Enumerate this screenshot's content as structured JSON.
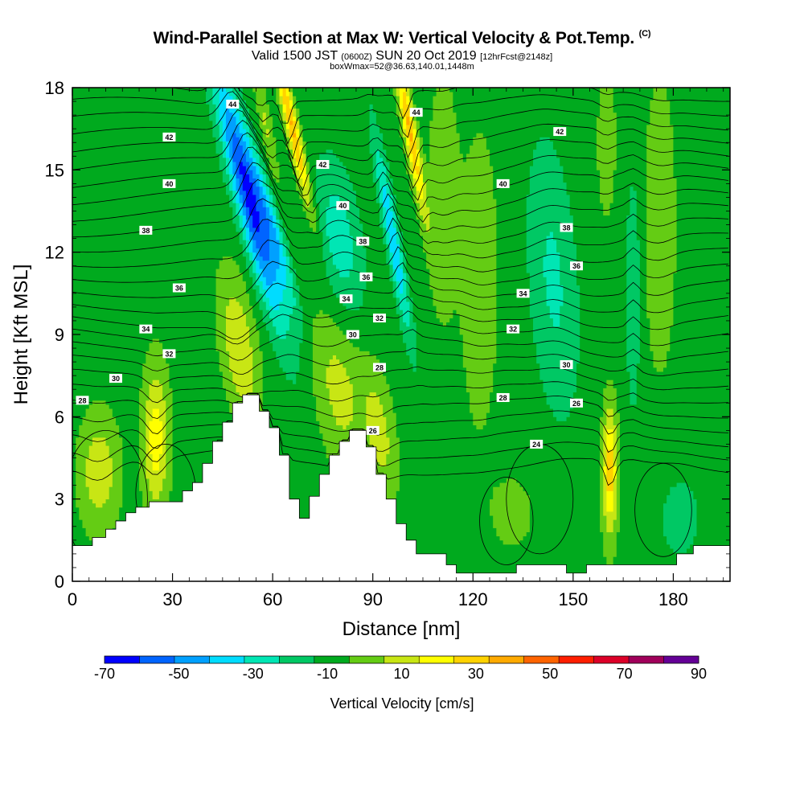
{
  "title": {
    "main": "Wind-Parallel Section at Max W: Vertical Velocity & Pot.Temp.",
    "copyright": "(C)",
    "valid_prefix": "Valid 1500 JST",
    "valid_zulu": "(0600Z)",
    "valid_date": "SUN 20 Oct 2019",
    "forecast": "[12hrFcst@2148z]",
    "box_info": "boxWmax=52@36.63,140.01,1448m"
  },
  "chart_data": {
    "type": "heatmap",
    "xlabel": "Distance [nm]",
    "ylabel": "Height [Kft MSL]",
    "xlim": [
      0,
      197
    ],
    "ylim": [
      0,
      18
    ],
    "x_ticks": [
      "0",
      "30",
      "60",
      "90",
      "120",
      "150",
      "180"
    ],
    "y_ticks": [
      "0",
      "3",
      "6",
      "9",
      "12",
      "15",
      "18"
    ],
    "colorbar": {
      "label": "Vertical Velocity [cm/s]",
      "tick_labels": [
        "-70",
        "-50",
        "-30",
        "-10",
        "10",
        "30",
        "50",
        "70",
        "90"
      ],
      "bounds": [
        -70,
        -60,
        -50,
        -40,
        -30,
        -20,
        -10,
        0,
        10,
        20,
        30,
        40,
        50,
        60,
        70,
        80,
        90
      ],
      "colors": [
        "#0000ff",
        "#0064ff",
        "#00a0ff",
        "#00dcff",
        "#00e6b4",
        "#00c864",
        "#00aa1e",
        "#64cc14",
        "#c8e614",
        "#ffff00",
        "#ffd200",
        "#ffaa00",
        "#ff6400",
        "#ff1e00",
        "#dc0028",
        "#a0005a",
        "#640096"
      ]
    },
    "terrain_kft": [
      [
        0,
        1.3
      ],
      [
        6,
        1.3
      ],
      [
        6,
        1.6
      ],
      [
        10,
        1.6
      ],
      [
        10,
        1.9
      ],
      [
        13,
        1.9
      ],
      [
        13,
        2.2
      ],
      [
        16,
        2.2
      ],
      [
        16,
        2.5
      ],
      [
        19,
        2.5
      ],
      [
        19,
        2.7
      ],
      [
        23,
        2.7
      ],
      [
        23,
        2.9
      ],
      [
        33,
        2.9
      ],
      [
        33,
        3.3
      ],
      [
        36,
        3.3
      ],
      [
        36,
        3.6
      ],
      [
        39,
        3.6
      ],
      [
        39,
        4.3
      ],
      [
        42,
        4.3
      ],
      [
        42,
        5.1
      ],
      [
        45,
        5.1
      ],
      [
        45,
        5.8
      ],
      [
        48,
        5.8
      ],
      [
        48,
        6.5
      ],
      [
        51,
        6.5
      ],
      [
        51,
        6.8
      ],
      [
        56,
        6.8
      ],
      [
        56,
        6.2
      ],
      [
        59,
        6.2
      ],
      [
        59,
        5.6
      ],
      [
        62,
        5.6
      ],
      [
        62,
        4.6
      ],
      [
        65,
        4.6
      ],
      [
        65,
        3.0
      ],
      [
        68,
        3.0
      ],
      [
        68,
        2.3
      ],
      [
        71,
        2.3
      ],
      [
        71,
        3.1
      ],
      [
        74,
        3.1
      ],
      [
        74,
        3.9
      ],
      [
        77,
        3.9
      ],
      [
        77,
        4.6
      ],
      [
        80,
        4.6
      ],
      [
        80,
        5.1
      ],
      [
        83,
        5.1
      ],
      [
        83,
        5.5
      ],
      [
        88,
        5.5
      ],
      [
        88,
        4.9
      ],
      [
        91,
        4.9
      ],
      [
        91,
        3.9
      ],
      [
        94,
        3.9
      ],
      [
        94,
        3.0
      ],
      [
        97,
        3.0
      ],
      [
        97,
        2.1
      ],
      [
        100,
        2.1
      ],
      [
        100,
        1.5
      ],
      [
        103,
        1.5
      ],
      [
        103,
        1.0
      ],
      [
        112,
        1.0
      ],
      [
        112,
        0.6
      ],
      [
        115,
        0.6
      ],
      [
        115,
        0.3
      ],
      [
        133,
        0.3
      ],
      [
        133,
        0.6
      ],
      [
        148,
        0.6
      ],
      [
        148,
        0.3
      ],
      [
        154,
        0.3
      ],
      [
        154,
        0.6
      ],
      [
        181,
        0.6
      ],
      [
        181,
        1.0
      ],
      [
        186,
        1.0
      ],
      [
        186,
        1.3
      ],
      [
        197,
        1.3
      ]
    ],
    "theta_labels": [
      {
        "text": "44",
        "x": 48,
        "y": 17.4
      },
      {
        "text": "42",
        "x": 29,
        "y": 16.2
      },
      {
        "text": "40",
        "x": 29,
        "y": 14.5
      },
      {
        "text": "38",
        "x": 22,
        "y": 12.8
      },
      {
        "text": "36",
        "x": 32,
        "y": 10.7
      },
      {
        "text": "34",
        "x": 22,
        "y": 9.2
      },
      {
        "text": "32",
        "x": 29,
        "y": 8.3
      },
      {
        "text": "30",
        "x": 13,
        "y": 7.4
      },
      {
        "text": "28",
        "x": 3,
        "y": 6.6
      },
      {
        "text": "42",
        "x": 75,
        "y": 15.2
      },
      {
        "text": "40",
        "x": 81,
        "y": 13.7
      },
      {
        "text": "38",
        "x": 87,
        "y": 12.4
      },
      {
        "text": "36",
        "x": 88,
        "y": 11.1
      },
      {
        "text": "34",
        "x": 82,
        "y": 10.3
      },
      {
        "text": "32",
        "x": 92,
        "y": 9.6
      },
      {
        "text": "30",
        "x": 84,
        "y": 9.0
      },
      {
        "text": "28",
        "x": 92,
        "y": 7.8
      },
      {
        "text": "26",
        "x": 90,
        "y": 5.5
      },
      {
        "text": "44",
        "x": 103,
        "y": 17.1
      },
      {
        "text": "42",
        "x": 146,
        "y": 16.4
      },
      {
        "text": "40",
        "x": 129,
        "y": 14.5
      },
      {
        "text": "38",
        "x": 148,
        "y": 12.9
      },
      {
        "text": "36",
        "x": 151,
        "y": 11.5
      },
      {
        "text": "34",
        "x": 135,
        "y": 10.5
      },
      {
        "text": "32",
        "x": 132,
        "y": 9.2
      },
      {
        "text": "30",
        "x": 148,
        "y": 7.9
      },
      {
        "text": "28",
        "x": 129,
        "y": 6.7
      },
      {
        "text": "26",
        "x": 151,
        "y": 6.5
      },
      {
        "text": "24",
        "x": 139,
        "y": 5.0
      }
    ]
  }
}
